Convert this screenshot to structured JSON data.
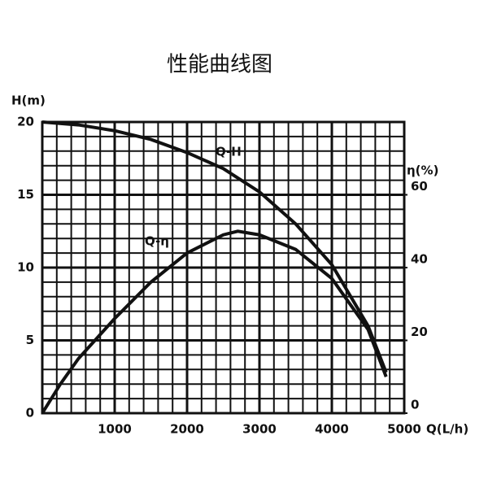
{
  "chart_data": {
    "type": "line",
    "title": "性能曲线图",
    "y_label": "H(m)",
    "y2_label": "η(%)",
    "x_label": "Q(L/h)",
    "xlim": [
      0,
      5000
    ],
    "xticks": [
      1000,
      2000,
      3000,
      4000,
      5000
    ],
    "ylim": [
      0,
      20
    ],
    "yticks": [
      0,
      5,
      10,
      15,
      20
    ],
    "y2lim": [
      0,
      80
    ],
    "y2ticks": [
      0,
      20,
      40,
      60
    ],
    "grid": true,
    "series": [
      {
        "name": "Q-H",
        "color": "#111111",
        "x": [
          0,
          500,
          1000,
          1500,
          2000,
          2500,
          3000,
          3500,
          4000,
          4500,
          4750
        ],
        "values": [
          20,
          19.8,
          19.4,
          18.8,
          17.9,
          16.8,
          15.2,
          13.0,
          10.2,
          6.0,
          2.8
        ]
      },
      {
        "name": "Q-η",
        "color": "#111111",
        "axis": "y2",
        "x": [
          0,
          250,
          500,
          1000,
          1500,
          2000,
          2500,
          2700,
          3000,
          3500,
          4000,
          4500,
          4750
        ],
        "values": [
          0,
          8,
          15,
          26,
          36,
          44,
          49,
          50,
          49,
          45,
          37,
          23,
          10
        ]
      }
    ]
  }
}
